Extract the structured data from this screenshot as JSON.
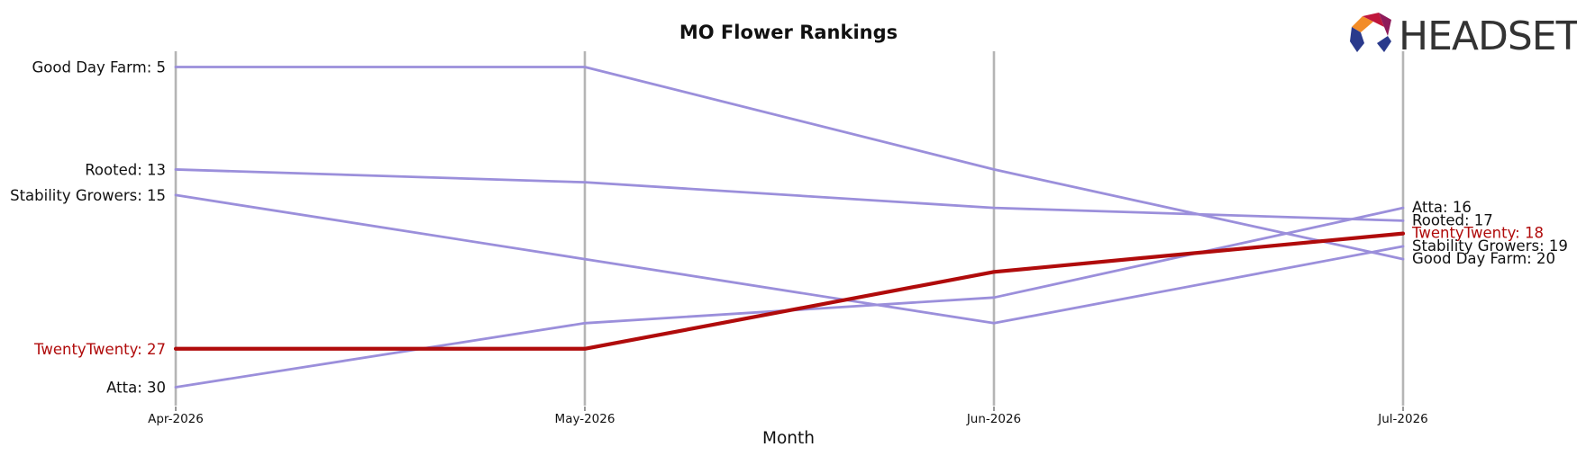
{
  "chart_data": {
    "type": "line",
    "title": "MO Flower Rankings",
    "xlabel": "Month",
    "ylabel": "",
    "categories": [
      "Apr-2026",
      "May-2026",
      "Jun-2026",
      "Jul-2026"
    ],
    "y_inverted": true,
    "ylim": [
      31.5,
      3.5
    ],
    "grid": "vertical lines at each month",
    "legend": "none (series labeled at line ends)",
    "series": [
      {
        "name": "Good Day Farm",
        "values": [
          5,
          5,
          13,
          20
        ],
        "color": "#9b8fdb",
        "highlight": false
      },
      {
        "name": "Rooted",
        "values": [
          13,
          14,
          16,
          17
        ],
        "color": "#9b8fdb",
        "highlight": false
      },
      {
        "name": "Stability Growers",
        "values": [
          15,
          20,
          25,
          19
        ],
        "color": "#9b8fdb",
        "highlight": false
      },
      {
        "name": "Atta",
        "values": [
          30,
          25,
          23,
          16
        ],
        "color": "#9b8fdb",
        "highlight": false
      },
      {
        "name": "TwentyTwenty",
        "values": [
          27,
          27,
          21,
          18
        ],
        "color": "#b00b0b",
        "highlight": true
      }
    ],
    "left_labels": [
      {
        "series": "Good Day Farm",
        "text": "Good Day Farm: 5"
      },
      {
        "series": "Rooted",
        "text": "Rooted: 13"
      },
      {
        "series": "Stability Growers",
        "text": "Stability Growers: 15"
      },
      {
        "series": "TwentyTwenty",
        "text": "TwentyTwenty: 27"
      },
      {
        "series": "Atta",
        "text": "Atta: 30"
      }
    ],
    "right_labels": [
      {
        "series": "Atta",
        "text": "Atta: 16"
      },
      {
        "series": "Rooted",
        "text": "Rooted: 17"
      },
      {
        "series": "TwentyTwenty",
        "text": "TwentyTwenty: 18"
      },
      {
        "series": "Stability Growers",
        "text": "Stability Growers: 19"
      },
      {
        "series": "Good Day Farm",
        "text": "Good Day Farm: 20"
      }
    ]
  },
  "brand": {
    "wordmark": "HEADSET",
    "logo_colors": [
      "#f28c28",
      "#c0163c",
      "#8e1b5a",
      "#2a3a8c"
    ]
  }
}
